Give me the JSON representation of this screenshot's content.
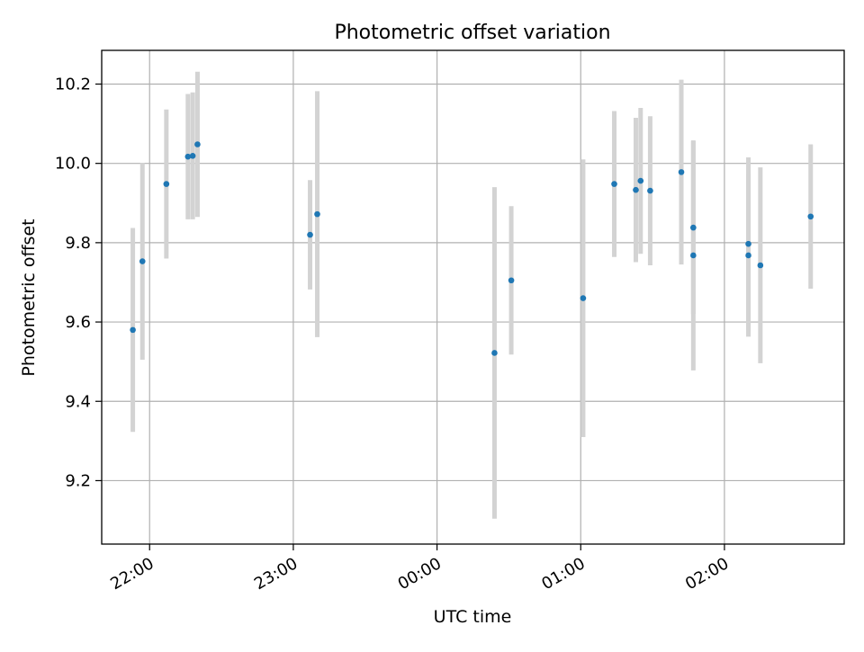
{
  "chart_data": {
    "type": "scatter",
    "title": "Photometric offset variation",
    "xlabel": "UTC time",
    "ylabel": "Photometric offset",
    "x_axis": {
      "type": "time",
      "range": [
        "21:40",
        "02:50"
      ],
      "ticks": [
        {
          "t": "22:00",
          "label": "22:00"
        },
        {
          "t": "23:00",
          "label": "23:00"
        },
        {
          "t": "24:00",
          "label": "00:00"
        },
        {
          "t": "25:00",
          "label": "01:00"
        },
        {
          "t": "26:00",
          "label": "02:00"
        }
      ]
    },
    "y_axis": {
      "range": [
        9.04,
        10.285
      ],
      "ticks": [
        {
          "v": 9.2,
          "label": "9.2"
        },
        {
          "v": 9.4,
          "label": "9.4"
        },
        {
          "v": 9.6,
          "label": "9.6"
        },
        {
          "v": 9.8,
          "label": "9.8"
        },
        {
          "v": 10.0,
          "label": "10.0"
        },
        {
          "v": 10.2,
          "label": "10.2"
        }
      ]
    },
    "grid": true,
    "colors": {
      "point": "#1f77b4",
      "errorbar": "#d3d3d3",
      "grid": "#b0b0b0"
    },
    "points": [
      {
        "t": "21:53",
        "y": 9.58,
        "err": 0.257
      },
      {
        "t": "21:57",
        "y": 9.753,
        "err": 0.248
      },
      {
        "t": "22:07",
        "y": 9.948,
        "err": 0.188
      },
      {
        "t": "22:16",
        "y": 10.017,
        "err": 0.158
      },
      {
        "t": "22:18",
        "y": 10.019,
        "err": 0.16
      },
      {
        "t": "22:20",
        "y": 10.048,
        "err": 0.183
      },
      {
        "t": "23:07",
        "y": 9.82,
        "err": 0.138
      },
      {
        "t": "23:10",
        "y": 9.872,
        "err": 0.31
      },
      {
        "t": "00:24",
        "y": 9.522,
        "err": 0.418
      },
      {
        "t": "00:31",
        "y": 9.705,
        "err": 0.187
      },
      {
        "t": "01:01",
        "y": 9.66,
        "err": 0.35
      },
      {
        "t": "01:14",
        "y": 9.948,
        "err": 0.184
      },
      {
        "t": "01:23",
        "y": 9.933,
        "err": 0.182
      },
      {
        "t": "01:25",
        "y": 9.956,
        "err": 0.184
      },
      {
        "t": "01:29",
        "y": 9.931,
        "err": 0.188
      },
      {
        "t": "01:42",
        "y": 9.978,
        "err": 0.233
      },
      {
        "t": "01:47",
        "y": 9.838,
        "err": 0.218
      },
      {
        "t": "01:47",
        "y": 9.768,
        "err": 0.29
      },
      {
        "t": "02:10",
        "y": 9.768,
        "err": 0.205
      },
      {
        "t": "02:10",
        "y": 9.797,
        "err": 0.218
      },
      {
        "t": "02:15",
        "y": 9.743,
        "err": 0.247
      },
      {
        "t": "02:36",
        "y": 9.866,
        "err": 0.182
      }
    ]
  }
}
